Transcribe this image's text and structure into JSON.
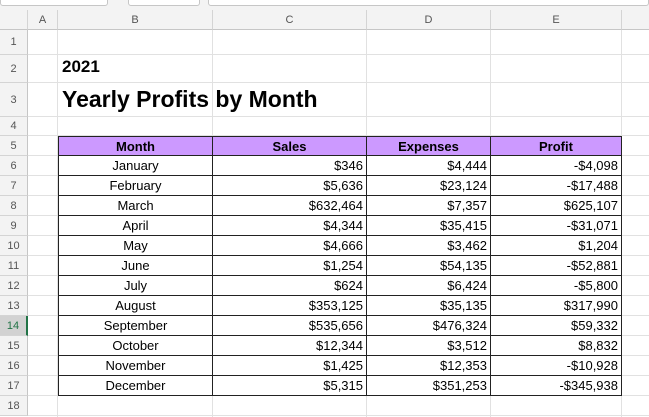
{
  "sheet": {
    "column_headers": [
      "A",
      "B",
      "C",
      "D",
      "E"
    ],
    "row_headers": [
      "1",
      "2",
      "3",
      "4",
      "5",
      "6",
      "7",
      "8",
      "9",
      "10",
      "11",
      "12",
      "13",
      "14",
      "15",
      "16",
      "17",
      "18"
    ],
    "year": "2021",
    "title": "Yearly Profits by Month"
  },
  "table": {
    "header": [
      "Month",
      "Sales",
      "Expenses",
      "Profit"
    ],
    "rows": [
      [
        "January",
        "$346",
        "$4,444",
        "-$4,098"
      ],
      [
        "February",
        "$5,636",
        "$23,124",
        "-$17,488"
      ],
      [
        "March",
        "$632,464",
        "$7,357",
        "$625,107"
      ],
      [
        "April",
        "$4,344",
        "$35,415",
        "-$31,071"
      ],
      [
        "May",
        "$4,666",
        "$3,462",
        "$1,204"
      ],
      [
        "June",
        "$1,254",
        "$54,135",
        "-$52,881"
      ],
      [
        "July",
        "$624",
        "$6,424",
        "-$5,800"
      ],
      [
        "August",
        "$353,125",
        "$35,135",
        "$317,990"
      ],
      [
        "September",
        "$535,656",
        "$476,324",
        "$59,332"
      ],
      [
        "October",
        "$12,344",
        "$3,512",
        "$8,832"
      ],
      [
        "November",
        "$1,425",
        "$12,353",
        "-$10,928"
      ],
      [
        "December",
        "$5,315",
        "$351,253",
        "-$345,938"
      ]
    ]
  }
}
